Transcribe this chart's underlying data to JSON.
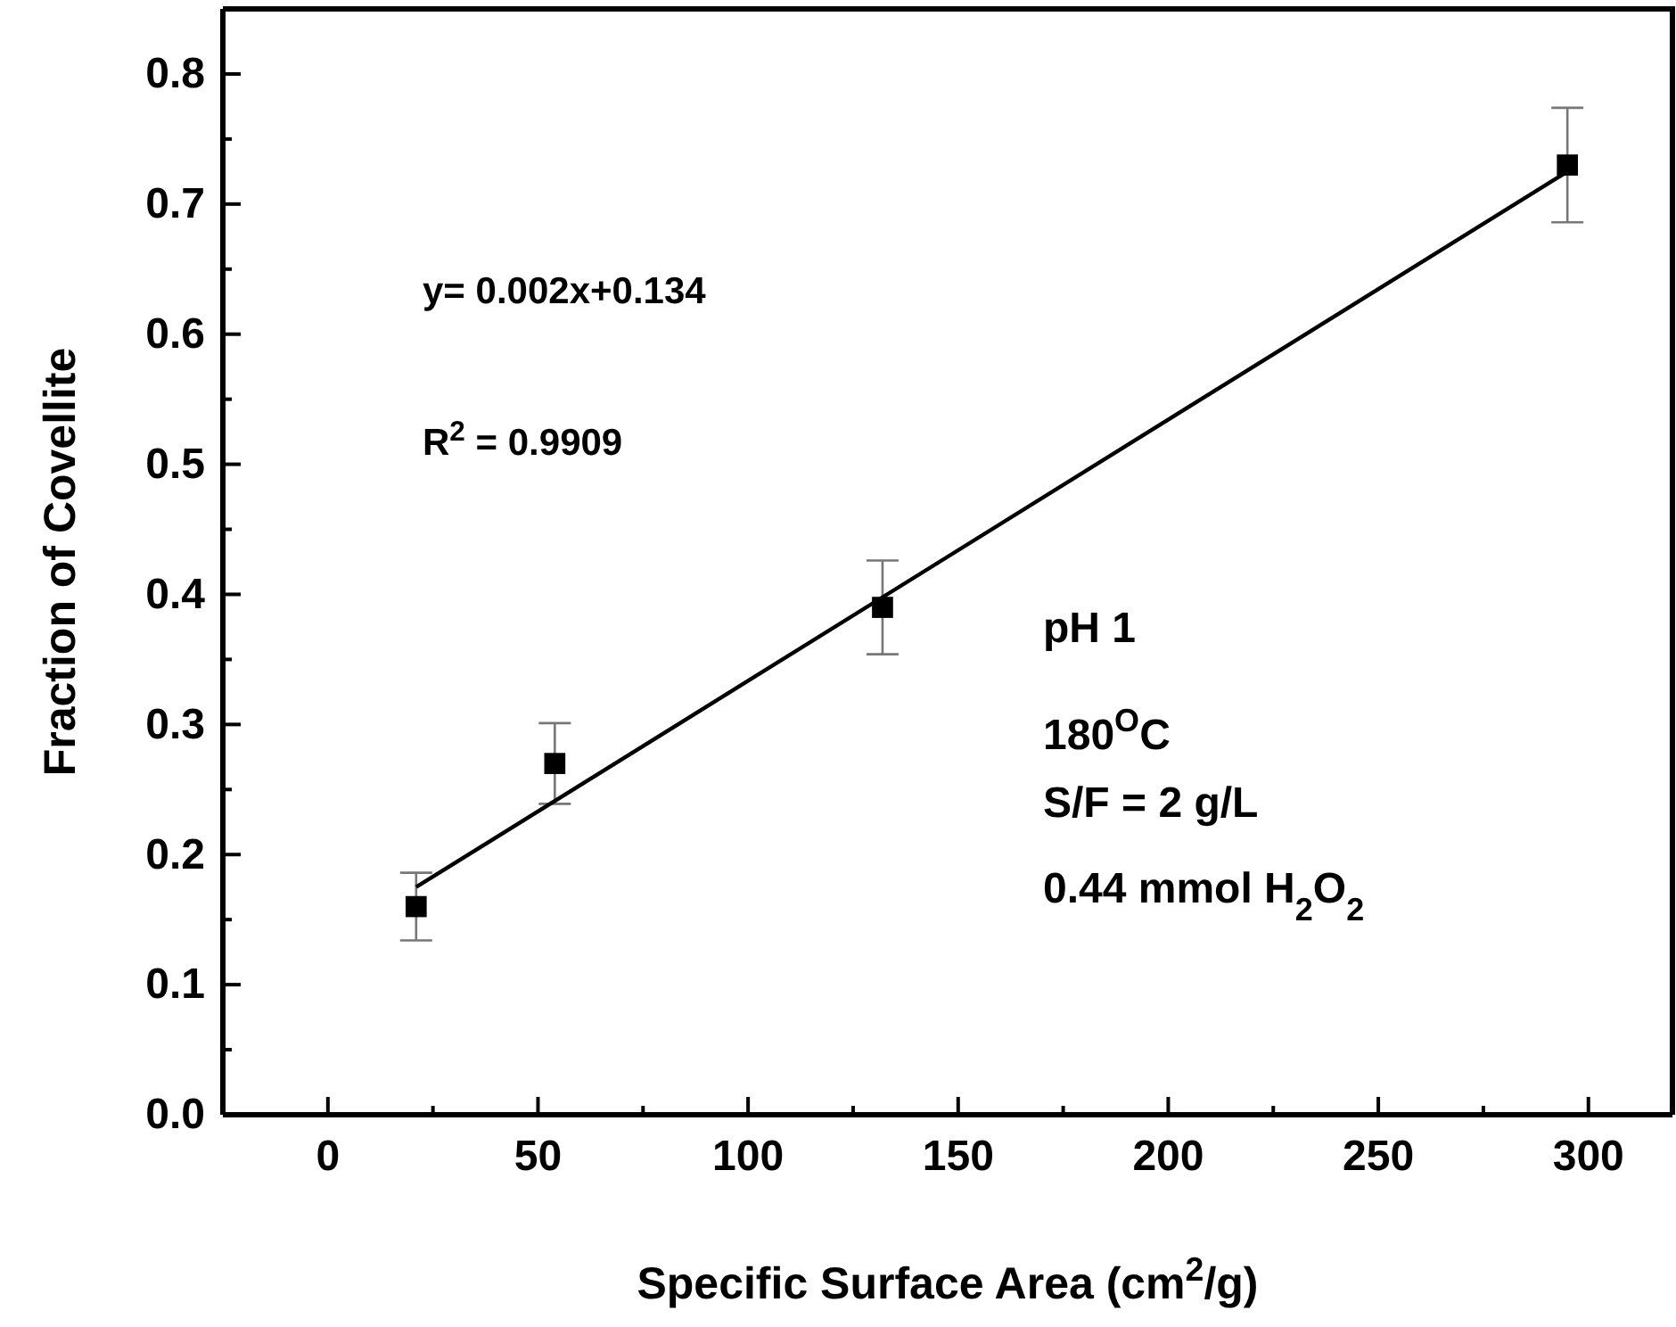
{
  "chart_data": {
    "type": "scatter",
    "xlabel": "Specific Surface Area (cm$^{2}$/g)",
    "ylabel": "Fraction of Covellite",
    "xlim": [
      -25,
      320
    ],
    "xticks": [
      0,
      {
        "value": 25,
        "label": null
      },
      50,
      {
        "value": 75,
        "label": null
      },
      100,
      {
        "value": 125,
        "label": null
      },
      150,
      {
        "value": 175,
        "label": null
      },
      200,
      {
        "value": 225,
        "label": null
      },
      250,
      {
        "value": 275,
        "label": null
      },
      300
    ],
    "ylim": [
      0,
      0.85
    ],
    "yticks": [
      {
        "value": 0,
        "label": "0.0"
      },
      {
        "value": 0.05,
        "label": null
      },
      0.1,
      {
        "value": 0.15,
        "label": null
      },
      0.2,
      {
        "value": 0.25,
        "label": null
      },
      0.3,
      {
        "value": 0.35,
        "label": null
      },
      0.4,
      {
        "value": 0.45,
        "label": null
      },
      0.5,
      {
        "value": 0.55,
        "label": null
      },
      0.6,
      {
        "value": 0.65,
        "label": null
      },
      0.7,
      {
        "value": 0.75,
        "label": null
      },
      0.8
    ],
    "marker": "square",
    "series": [
      {
        "color": "#000000",
        "x": [
          21,
          54,
          132,
          295
        ],
        "values": [
          0.16,
          0.27,
          0.39,
          0.73
        ],
        "errors": [
          0.026,
          0.031,
          0.036,
          0.044
        ]
      },
      {
        "type": "line",
        "color": "#000000",
        "x": [
          21,
          295
        ],
        "values": [
          0.175,
          0.725
        ],
        "marker": "none"
      }
    ],
    "annotations": [
      "y= 0.002x+0.134",
      "R$^{2}$ = 0.9909",
      "pH 1",
      "180$^{O}$C",
      "S/F = 2 g/L",
      "0.44 mmol H$_{2}$O$_{2}$"
    ]
  }
}
